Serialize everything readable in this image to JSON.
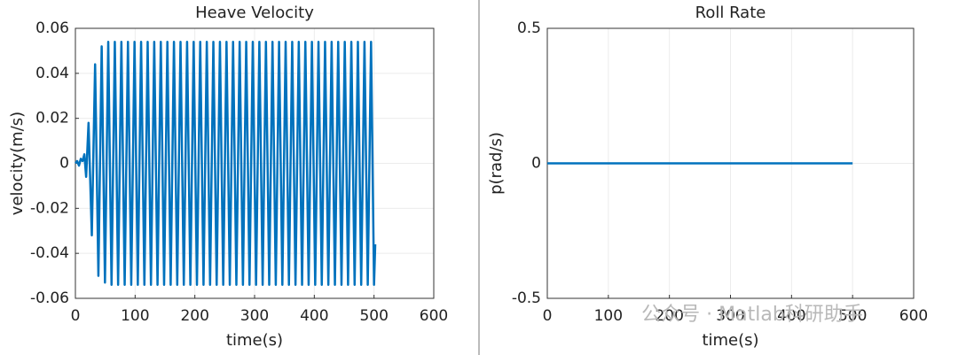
{
  "chart_data": [
    {
      "type": "line",
      "title": "Heave Velocity",
      "xlabel": "time(s)",
      "ylabel": "velocity(m/s)",
      "x": [
        0,
        3,
        6,
        9,
        12,
        15,
        18,
        22,
        27.5,
        33,
        38.5,
        44,
        49.5,
        55,
        60.5,
        66,
        71.5,
        77,
        82.5,
        88,
        93.5,
        99,
        104.5,
        110,
        115.5,
        121,
        126.5,
        132,
        137.5,
        143,
        148.5,
        154,
        159.5,
        165,
        170.5,
        176,
        181.5,
        187,
        192.5,
        198,
        203.5,
        209,
        214.5,
        220,
        225.5,
        231,
        236.5,
        242,
        247.5,
        253,
        258.5,
        264,
        269.5,
        275,
        280.5,
        286,
        291.5,
        297,
        302.5,
        308,
        313.5,
        319,
        324.5,
        330,
        335.5,
        341,
        346.5,
        352,
        357.5,
        363,
        368.5,
        374,
        379.5,
        385,
        390.5,
        396,
        401.5,
        407,
        412.5,
        418,
        423.5,
        429,
        434.5,
        440,
        445.5,
        451,
        456.5,
        462,
        467.5,
        473,
        478.5,
        484,
        489.5,
        495,
        500,
        502
      ],
      "series": [
        {
          "color": "#0072bd",
          "values": [
            0,
            0.001,
            -0.001,
            0.002,
            0.001,
            0.004,
            -0.006,
            0.018,
            -0.032,
            0.044,
            -0.05,
            0.052,
            -0.053,
            0.054,
            -0.054,
            0.054,
            -0.054,
            0.054,
            -0.054,
            0.054,
            -0.054,
            0.054,
            -0.054,
            0.054,
            -0.054,
            0.054,
            -0.054,
            0.054,
            -0.054,
            0.054,
            -0.054,
            0.054,
            -0.054,
            0.054,
            -0.054,
            0.054,
            -0.054,
            0.054,
            -0.054,
            0.054,
            -0.054,
            0.054,
            -0.054,
            0.054,
            -0.054,
            0.054,
            -0.054,
            0.054,
            -0.054,
            0.054,
            -0.054,
            0.054,
            -0.054,
            0.054,
            -0.054,
            0.054,
            -0.054,
            0.054,
            -0.054,
            0.054,
            -0.054,
            0.054,
            -0.054,
            0.054,
            -0.054,
            0.054,
            -0.054,
            0.054,
            -0.054,
            0.054,
            -0.054,
            0.054,
            -0.054,
            0.054,
            -0.054,
            0.054,
            -0.054,
            0.054,
            -0.054,
            0.054,
            -0.054,
            0.054,
            -0.054,
            0.054,
            -0.054,
            0.054,
            -0.054,
            0.054,
            -0.054,
            0.054,
            -0.054,
            0.054,
            -0.054,
            0.054,
            -0.054,
            -0.036
          ]
        }
      ],
      "xlim": [
        0,
        600
      ],
      "xticks": [
        0,
        100,
        200,
        300,
        400,
        500,
        600
      ],
      "ylim": [
        -0.06,
        0.06
      ],
      "yticks": [
        -0.06,
        -0.04,
        -0.02,
        0,
        0.02,
        0.04,
        0.06
      ],
      "grid": true
    },
    {
      "type": "line",
      "title": "Roll Rate",
      "xlabel": "time(s)",
      "ylabel": "p(rad/s)",
      "x": [
        0,
        500
      ],
      "series": [
        {
          "color": "#0072bd",
          "values": [
            0,
            0
          ]
        }
      ],
      "xlim": [
        0,
        600
      ],
      "xticks": [
        0,
        100,
        200,
        300,
        400,
        500,
        600
      ],
      "ylim": [
        -0.5,
        0.5
      ],
      "yticks": [
        -0.5,
        0,
        0.5
      ],
      "grid": true
    }
  ],
  "watermark": "公众号 · Matlab科研助手"
}
